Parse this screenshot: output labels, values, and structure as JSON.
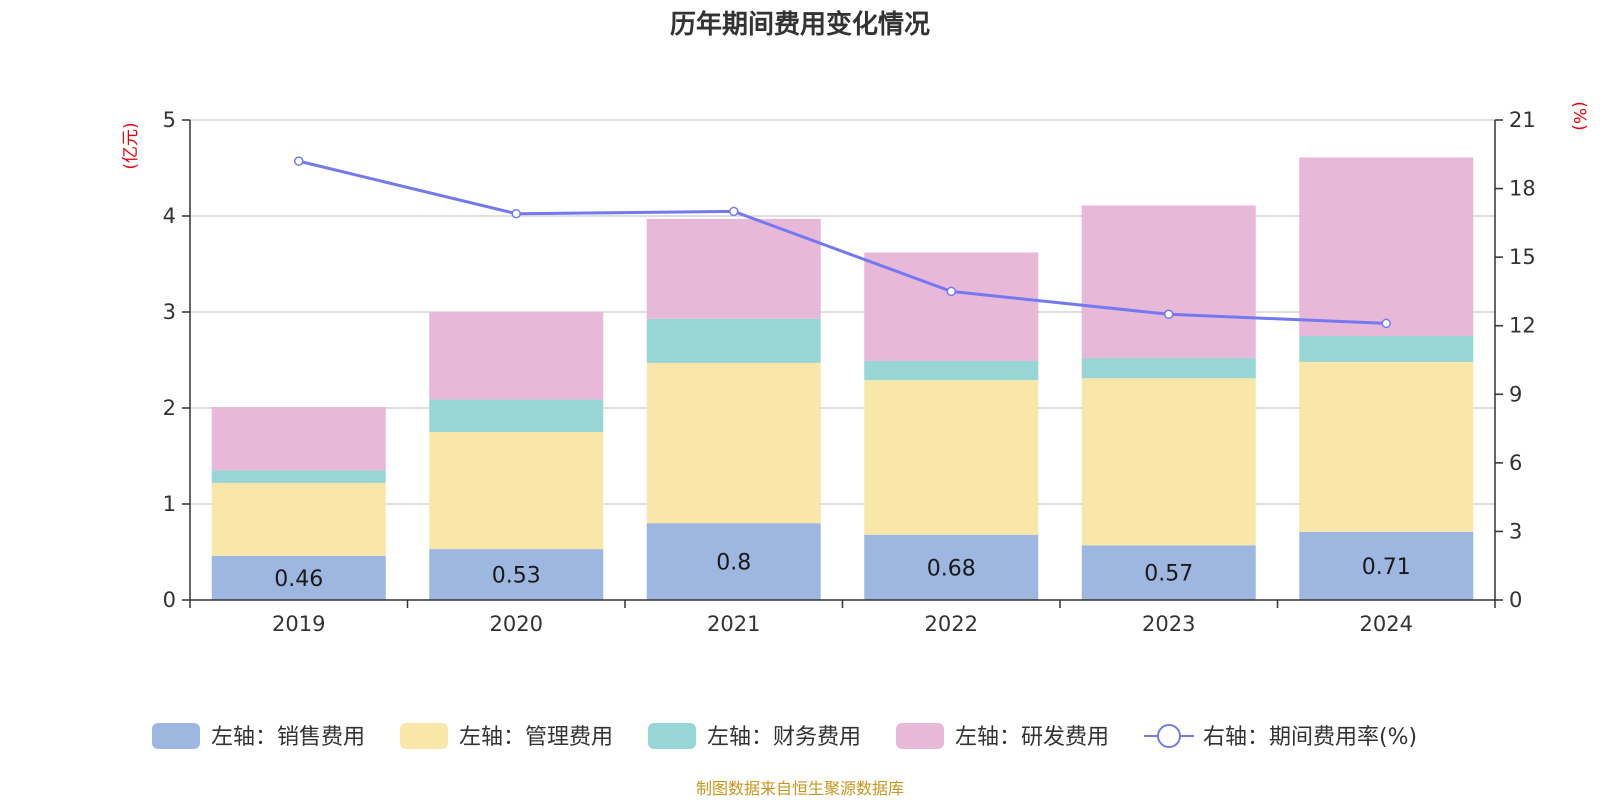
{
  "chart_data": {
    "type": "bar",
    "title": "历年期间费用变化情况",
    "categories": [
      "2019",
      "2020",
      "2021",
      "2022",
      "2023",
      "2024"
    ],
    "left_axis": {
      "unit": "(亿元)",
      "range": [
        0,
        5
      ],
      "ticks": [
        "0",
        "1",
        "2",
        "3",
        "4",
        "5"
      ]
    },
    "right_axis": {
      "unit": "(%)",
      "range": [
        0,
        21
      ],
      "ticks": [
        "0",
        "3",
        "6",
        "9",
        "12",
        "15",
        "18",
        "21"
      ]
    },
    "series": [
      {
        "name": "左轴：销售费用",
        "kind": "bar",
        "axis": "left",
        "color": "#9db7e0",
        "values": [
          0.46,
          0.53,
          0.8,
          0.68,
          0.57,
          0.71
        ],
        "labels": [
          "0.46",
          "0.53",
          "0.8",
          "0.68",
          "0.57",
          "0.71"
        ]
      },
      {
        "name": "左轴：管理费用",
        "kind": "bar",
        "axis": "left",
        "color": "#f8e7a9",
        "values": [
          0.76,
          1.22,
          1.67,
          1.61,
          1.74,
          1.77
        ]
      },
      {
        "name": "左轴：财务费用",
        "kind": "bar",
        "axis": "left",
        "color": "#98d5d5",
        "values": [
          0.13,
          0.34,
          0.46,
          0.2,
          0.21,
          0.27
        ]
      },
      {
        "name": "左轴：研发费用",
        "kind": "bar",
        "axis": "left",
        "color": "#e8b8d8",
        "values": [
          0.66,
          0.91,
          1.04,
          1.13,
          1.59,
          1.86
        ]
      },
      {
        "name": "右轴：期间费用率(%)",
        "kind": "line",
        "axis": "right",
        "color": "#7479f0",
        "values": [
          19.2,
          16.9,
          17.0,
          13.5,
          12.5,
          12.1
        ]
      }
    ],
    "grid": true,
    "legend_position": "bottom"
  },
  "source_text": "制图数据来自恒生聚源数据库"
}
